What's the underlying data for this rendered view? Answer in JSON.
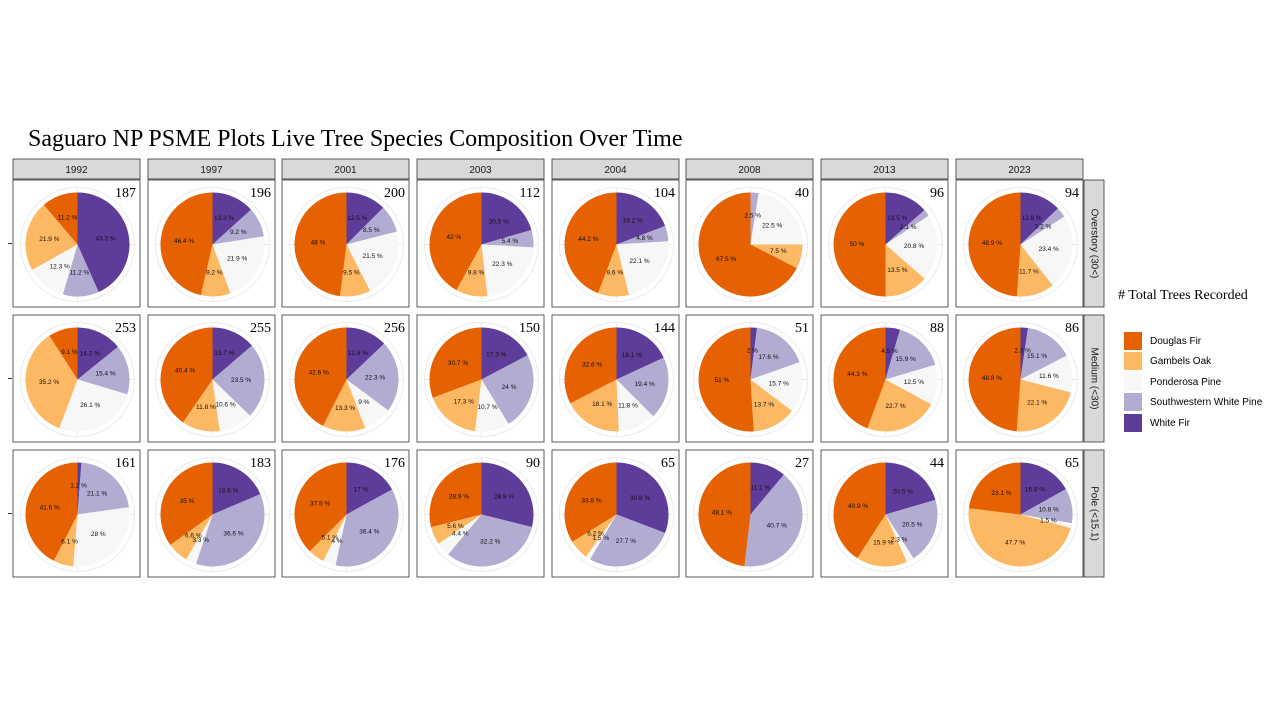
{
  "chart_data": {
    "type": "pie",
    "title": "Saguaro NP PSME Plots Live Tree Species Composition Over Time",
    "legend_title": "# Total Trees Recorded",
    "legend_position": "right",
    "years": [
      "1992",
      "1997",
      "2001",
      "2003",
      "2004",
      "2008",
      "2013",
      "2023"
    ],
    "size_classes": [
      "Overstory (30<)",
      "Medium (<30)",
      "Pole (<15.1)"
    ],
    "species": [
      {
        "name": "Douglas Fir",
        "color": "#E66101"
      },
      {
        "name": "Gambels Oak",
        "color": "#FDB863"
      },
      {
        "name": "Ponderosa Pine",
        "color": "#F7F7F7"
      },
      {
        "name": "Southwestern White Pine",
        "color": "#B2ABD2"
      },
      {
        "name": "White Fir",
        "color": "#5E3C99"
      }
    ],
    "panels": [
      [
        {
          "total": "187",
          "labels": [
            "11.2 %",
            "21.9 %",
            "12.3 %",
            "11.2 %",
            "43.3 %"
          ],
          "values": [
            11.2,
            21.9,
            12.3,
            11.2,
            43.3
          ]
        },
        {
          "total": "196",
          "labels": [
            "46.4 %",
            "9.2 %",
            "21.9 %",
            "9.2 %",
            "13.3 %"
          ],
          "values": [
            46.4,
            9.2,
            21.9,
            9.2,
            13.3
          ]
        },
        {
          "total": "200",
          "labels": [
            "48 %",
            "9.5 %",
            "21.5 %",
            "8.5 %",
            "12.5 %"
          ],
          "values": [
            48,
            9.5,
            21.5,
            8.5,
            12.5
          ]
        },
        {
          "total": "112",
          "labels": [
            "42 %",
            "9.8 %",
            "22.3 %",
            "5.4 %",
            "20.5 %"
          ],
          "values": [
            42,
            9.8,
            22.3,
            5.4,
            20.5
          ]
        },
        {
          "total": "104",
          "labels": [
            "44.2 %",
            "9.6 %",
            "22.1 %",
            "4.8 %",
            "19.2 %"
          ],
          "values": [
            44.2,
            9.6,
            22.1,
            4.8,
            19.2
          ]
        },
        {
          "total": "40",
          "labels": [
            "67.5 %",
            "7.5 %",
            "22.5 %",
            "2.5 %",
            ""
          ],
          "values": [
            67.5,
            7.5,
            22.5,
            2.5,
            0
          ]
        },
        {
          "total": "96",
          "labels": [
            "50 %",
            "13.5 %",
            "20.8 %",
            "2.1 %",
            "13.5 %"
          ],
          "values": [
            50,
            13.5,
            20.8,
            2.1,
            13.5
          ]
        },
        {
          "total": "94",
          "labels": [
            "48.9 %",
            "11.7 %",
            "23.4 %",
            "3.2 %",
            "12.8 %"
          ],
          "values": [
            48.9,
            11.7,
            23.4,
            3.2,
            12.8
          ]
        }
      ],
      [
        {
          "total": "253",
          "labels": [
            "9.1 %",
            "35.2 %",
            "26.1 %",
            "15.4 %",
            "14.2 %"
          ],
          "values": [
            9.1,
            35.2,
            26.1,
            15.4,
            14.2
          ]
        },
        {
          "total": "255",
          "labels": [
            "40.4 %",
            "11.8 %",
            "10.6 %",
            "23.5 %",
            "13.7 %"
          ],
          "values": [
            40.4,
            11.8,
            10.6,
            23.5,
            13.7
          ]
        },
        {
          "total": "256",
          "labels": [
            "42.6 %",
            "13.3 %",
            "9 %",
            "22.3 %",
            "12.9 %"
          ],
          "values": [
            42.6,
            13.3,
            9,
            22.3,
            12.9
          ]
        },
        {
          "total": "150",
          "labels": [
            "30.7 %",
            "17.3 %",
            "10.7 %",
            "24 %",
            "17.3 %"
          ],
          "values": [
            30.7,
            17.3,
            10.7,
            24,
            17.3
          ]
        },
        {
          "total": "144",
          "labels": [
            "32.6 %",
            "18.1 %",
            "11.8 %",
            "19.4 %",
            "18.1 %"
          ],
          "values": [
            32.6,
            18.1,
            11.8,
            19.4,
            18.1
          ]
        },
        {
          "total": "51",
          "labels": [
            "51 %",
            "13.7 %",
            "15.7 %",
            "17.6 %",
            "2 %"
          ],
          "values": [
            51,
            13.7,
            15.7,
            17.6,
            2
          ]
        },
        {
          "total": "88",
          "labels": [
            "44.3 %",
            "22.7 %",
            "12.5 %",
            "15.9 %",
            "4.5 %"
          ],
          "values": [
            44.3,
            22.7,
            12.5,
            15.9,
            4.5
          ]
        },
        {
          "total": "86",
          "labels": [
            "48.8 %",
            "22.1 %",
            "11.6 %",
            "15.1 %",
            "2.3 %"
          ],
          "values": [
            48.8,
            22.1,
            11.6,
            15.1,
            2.3
          ]
        }
      ],
      [
        {
          "total": "161",
          "labels": [
            "41.6 %",
            "6.1 %",
            "28 %",
            "21.1 %",
            "1.2 %"
          ],
          "values": [
            41.6,
            6.1,
            28,
            21.1,
            1.2
          ]
        },
        {
          "total": "183",
          "labels": [
            "35 %",
            "6.6 %",
            "3.3 %",
            "36.6 %",
            "18.6 %"
          ],
          "values": [
            35,
            6.6,
            3.3,
            36.6,
            18.6
          ]
        },
        {
          "total": "176",
          "labels": [
            "37.5 %",
            "5.1 %",
            "4 %",
            "36.4 %",
            "17 %"
          ],
          "values": [
            37.5,
            5.1,
            4,
            36.4,
            17
          ]
        },
        {
          "total": "90",
          "labels": [
            "28.9 %",
            "5.6 %",
            "4.4 %",
            "32.2 %",
            "28.9 %"
          ],
          "values": [
            28.9,
            5.6,
            4.4,
            32.2,
            28.9
          ]
        },
        {
          "total": "65",
          "labels": [
            "33.8 %",
            "6.2 %",
            "1.5 %",
            "27.7 %",
            "30.8 %"
          ],
          "values": [
            33.8,
            6.2,
            1.5,
            27.7,
            30.8
          ]
        },
        {
          "total": "27",
          "labels": [
            "48.1 %",
            "",
            "",
            "40.7 %",
            "11.1 %"
          ],
          "values": [
            48.1,
            0,
            0,
            40.7,
            11.1
          ]
        },
        {
          "total": "44",
          "labels": [
            "40.9 %",
            "15.9 %",
            "2.3 %",
            "20.5 %",
            "20.5 %"
          ],
          "values": [
            40.9,
            15.9,
            2.3,
            20.5,
            20.5
          ]
        },
        {
          "total": "65",
          "labels": [
            "23.1 %",
            "47.7 %",
            "1.5 %",
            "10.8 %",
            "16.9 %"
          ],
          "values": [
            23.1,
            47.7,
            1.5,
            10.8,
            16.9
          ]
        }
      ]
    ]
  }
}
